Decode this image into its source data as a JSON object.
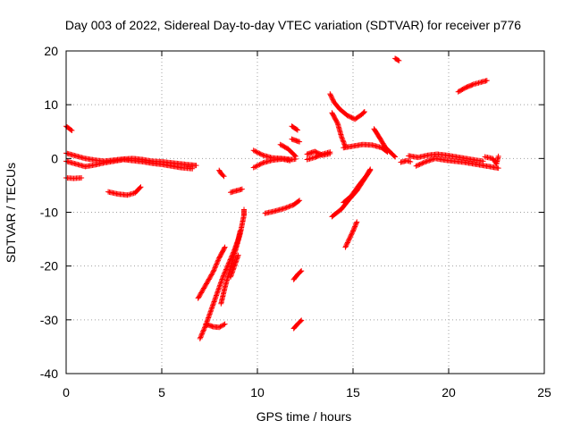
{
  "chart_data": {
    "type": "scatter",
    "title": "Day 003 of 2022, Sidereal Day-to-day VTEC variation (SDTVAR) for receiver p776",
    "xlabel": "GPS time / hours",
    "ylabel": "SDTVAR / TECUs",
    "xlim": [
      0,
      25
    ],
    "ylim": [
      -40,
      20
    ],
    "xticks": [
      0,
      5,
      10,
      15,
      20,
      25
    ],
    "yticks": [
      -40,
      -30,
      -20,
      -10,
      0,
      10,
      20
    ],
    "grid": true,
    "marker": "plus",
    "colors": {
      "points": "#ff0000",
      "grid": "#a0a0a0",
      "axis": "#000000"
    },
    "series": [
      {
        "values": [
          [
            0.0,
            6.0
          ],
          [
            0.3,
            5.2
          ]
        ]
      },
      {
        "values": [
          [
            0.0,
            1.0
          ],
          [
            0.5,
            0.5
          ],
          [
            1.0,
            0.0
          ],
          [
            1.5,
            -0.3
          ],
          [
            2.0,
            -0.5
          ],
          [
            2.5,
            -0.3
          ],
          [
            3.0,
            -0.1
          ],
          [
            3.5,
            0.0
          ],
          [
            4.0,
            -0.2
          ],
          [
            4.5,
            -0.5
          ],
          [
            5.0,
            -0.6
          ],
          [
            5.5,
            -0.8
          ],
          [
            6.0,
            -1.0
          ],
          [
            6.5,
            -1.2
          ],
          [
            6.8,
            -1.3
          ]
        ]
      },
      {
        "values": [
          [
            0.0,
            -0.5
          ],
          [
            0.5,
            -1.0
          ],
          [
            1.0,
            -1.5
          ],
          [
            1.5,
            -1.2
          ],
          [
            2.0,
            -0.8
          ],
          [
            2.5,
            -0.5
          ],
          [
            3.0,
            -0.2
          ],
          [
            3.5,
            -0.4
          ],
          [
            4.0,
            -0.6
          ],
          [
            4.5,
            -0.9
          ],
          [
            5.0,
            -1.1
          ],
          [
            5.5,
            -1.4
          ],
          [
            6.0,
            -1.7
          ],
          [
            6.6,
            -1.9
          ]
        ]
      },
      {
        "values": [
          [
            0.0,
            -3.6
          ],
          [
            0.4,
            -3.7
          ],
          [
            0.8,
            -3.6
          ]
        ]
      },
      {
        "values": [
          [
            2.2,
            -6.2
          ],
          [
            2.7,
            -6.6
          ],
          [
            3.2,
            -6.8
          ],
          [
            3.6,
            -6.4
          ],
          [
            3.9,
            -5.3
          ]
        ]
      },
      {
        "values": [
          [
            7.0,
            -33.5
          ],
          [
            7.3,
            -31.0
          ],
          [
            7.6,
            -28.0
          ],
          [
            7.9,
            -25.0
          ],
          [
            8.2,
            -22.0
          ],
          [
            8.5,
            -19.5
          ],
          [
            8.8,
            -17.0
          ],
          [
            9.0,
            -15.0
          ],
          [
            9.1,
            -13.5
          ]
        ]
      },
      {
        "values": [
          [
            6.9,
            -26.0
          ],
          [
            7.3,
            -23.5
          ],
          [
            7.7,
            -21.0
          ],
          [
            8.0,
            -18.5
          ],
          [
            8.3,
            -16.5
          ]
        ]
      },
      {
        "values": [
          [
            7.3,
            -30.8
          ],
          [
            7.7,
            -31.3
          ],
          [
            8.0,
            -31.4
          ],
          [
            8.3,
            -30.8
          ]
        ]
      },
      {
        "values": [
          [
            8.1,
            -27.0
          ],
          [
            8.3,
            -24.0
          ],
          [
            8.5,
            -21.5
          ],
          [
            8.7,
            -19.0
          ],
          [
            8.9,
            -16.5
          ],
          [
            9.1,
            -14.0
          ],
          [
            9.3,
            -10.5
          ],
          [
            9.3,
            -9.5
          ]
        ]
      },
      {
        "values": [
          [
            8.6,
            -22.0
          ],
          [
            8.8,
            -20.0
          ],
          [
            9.0,
            -18.0
          ]
        ]
      },
      {
        "values": [
          [
            8.0,
            -2.2
          ],
          [
            8.1,
            -2.8
          ],
          [
            8.25,
            -3.3
          ]
        ]
      },
      {
        "values": [
          [
            8.6,
            -6.3
          ],
          [
            8.9,
            -6.0
          ],
          [
            9.2,
            -5.7
          ]
        ]
      },
      {
        "values": [
          [
            9.8,
            1.5
          ],
          [
            10.3,
            0.6
          ],
          [
            10.8,
            0.1
          ],
          [
            11.3,
            0.0
          ],
          [
            11.8,
            -0.2
          ],
          [
            12.0,
            -0.1
          ]
        ]
      },
      {
        "values": [
          [
            9.8,
            -1.7
          ],
          [
            10.3,
            -0.8
          ],
          [
            10.8,
            -0.3
          ],
          [
            11.3,
            -0.1
          ],
          [
            11.7,
            -0.4
          ]
        ]
      },
      {
        "values": [
          [
            11.2,
            2.6
          ],
          [
            11.6,
            1.8
          ],
          [
            12.0,
            0.4
          ]
        ]
      },
      {
        "values": [
          [
            11.8,
            6.0
          ],
          [
            12.1,
            5.3
          ]
        ]
      },
      {
        "values": [
          [
            11.8,
            3.6
          ],
          [
            12.2,
            3.1
          ]
        ]
      },
      {
        "values": [
          [
            10.4,
            -10.2
          ],
          [
            10.9,
            -9.8
          ],
          [
            11.4,
            -9.3
          ],
          [
            11.9,
            -8.6
          ],
          [
            12.2,
            -7.8
          ]
        ]
      },
      {
        "values": [
          [
            11.9,
            -22.5
          ],
          [
            12.1,
            -21.6
          ],
          [
            12.3,
            -20.9
          ]
        ]
      },
      {
        "values": [
          [
            11.9,
            -31.6
          ],
          [
            12.1,
            -30.8
          ],
          [
            12.3,
            -30.1
          ]
        ]
      },
      {
        "values": [
          [
            12.6,
            -0.2
          ],
          [
            13.0,
            0.2
          ],
          [
            13.4,
            0.8
          ],
          [
            13.8,
            1.2
          ]
        ]
      },
      {
        "values": [
          [
            12.6,
            0.8
          ],
          [
            13.0,
            1.3
          ],
          [
            13.4,
            0.6
          ],
          [
            13.8,
            0.9
          ]
        ]
      },
      {
        "values": [
          [
            13.8,
            12.0
          ],
          [
            14.0,
            10.5
          ],
          [
            14.3,
            9.2
          ],
          [
            14.7,
            8.0
          ],
          [
            15.1,
            7.3
          ],
          [
            15.5,
            8.3
          ],
          [
            15.6,
            8.7
          ]
        ]
      },
      {
        "values": [
          [
            13.9,
            8.5
          ],
          [
            14.2,
            6.5
          ],
          [
            14.4,
            4.0
          ],
          [
            14.6,
            2.2
          ]
        ]
      },
      {
        "values": [
          [
            13.9,
            -10.8
          ],
          [
            14.4,
            -9.4
          ],
          [
            14.8,
            -7.6
          ],
          [
            15.2,
            -6.0
          ],
          [
            15.6,
            -3.8
          ],
          [
            15.9,
            -2.2
          ]
        ]
      },
      {
        "values": [
          [
            14.5,
            -8.2
          ],
          [
            14.9,
            -7.0
          ],
          [
            15.3,
            -5.0
          ],
          [
            15.7,
            -3.2
          ],
          [
            15.9,
            -2.0
          ]
        ]
      },
      {
        "values": [
          [
            14.6,
            -16.5
          ],
          [
            14.8,
            -15.0
          ],
          [
            15.0,
            -13.5
          ],
          [
            15.2,
            -11.8
          ]
        ]
      },
      {
        "values": [
          [
            14.5,
            2.0
          ],
          [
            15.0,
            2.3
          ],
          [
            15.5,
            2.6
          ],
          [
            16.0,
            2.5
          ],
          [
            16.5,
            2.0
          ],
          [
            16.8,
            1.2
          ]
        ]
      },
      {
        "values": [
          [
            16.1,
            5.5
          ],
          [
            16.4,
            3.8
          ],
          [
            16.7,
            2.0
          ],
          [
            17.0,
            1.0
          ],
          [
            17.2,
            0.3
          ]
        ]
      },
      {
        "values": [
          [
            17.2,
            18.6
          ],
          [
            17.4,
            18.2
          ]
        ]
      },
      {
        "values": [
          [
            17.5,
            -0.7
          ],
          [
            17.8,
            -0.4
          ],
          [
            18.0,
            -0.6
          ]
        ]
      },
      {
        "values": [
          [
            17.9,
            0.5
          ],
          [
            18.4,
            0.2
          ],
          [
            18.9,
            0.6
          ],
          [
            19.4,
            0.8
          ],
          [
            19.9,
            0.6
          ],
          [
            20.4,
            0.3
          ],
          [
            20.9,
            0.0
          ],
          [
            21.4,
            -0.3
          ],
          [
            21.8,
            -0.5
          ]
        ]
      },
      {
        "values": [
          [
            18.3,
            -1.4
          ],
          [
            18.8,
            -0.6
          ],
          [
            19.3,
            0.0
          ],
          [
            19.8,
            -0.3
          ],
          [
            20.3,
            -0.5
          ],
          [
            20.8,
            -0.7
          ],
          [
            21.3,
            -1.0
          ],
          [
            21.8,
            -1.3
          ],
          [
            22.3,
            -1.6
          ],
          [
            22.6,
            -1.8
          ]
        ]
      },
      {
        "values": [
          [
            21.9,
            0.3
          ],
          [
            22.3,
            0.0
          ],
          [
            22.5,
            -1.0
          ],
          [
            22.6,
            0.4
          ]
        ]
      },
      {
        "values": [
          [
            20.5,
            12.4
          ],
          [
            20.9,
            13.2
          ],
          [
            21.3,
            13.8
          ],
          [
            21.7,
            14.2
          ],
          [
            22.0,
            14.5
          ]
        ]
      }
    ]
  }
}
